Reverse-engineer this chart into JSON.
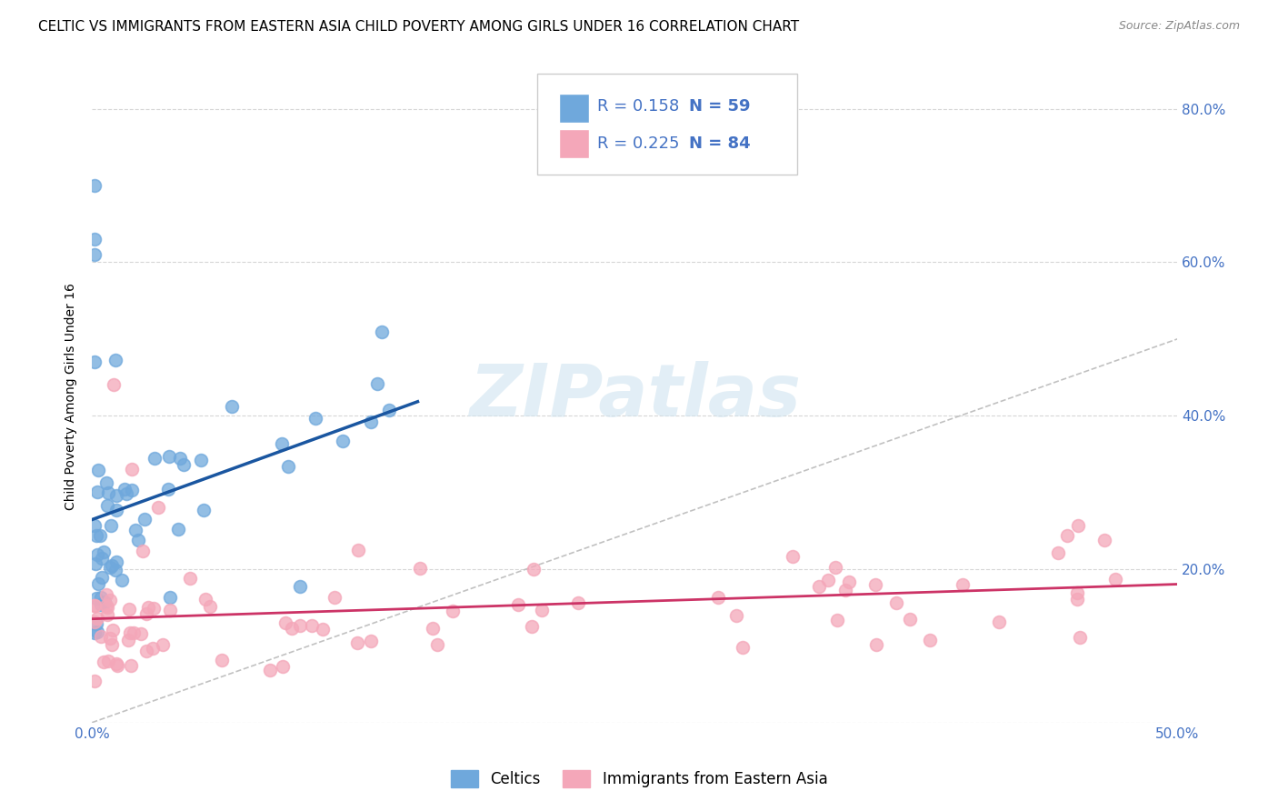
{
  "title": "CELTIC VS IMMIGRANTS FROM EASTERN ASIA CHILD POVERTY AMONG GIRLS UNDER 16 CORRELATION CHART",
  "source": "Source: ZipAtlas.com",
  "axis_color": "#4472c4",
  "ylabel": "Child Poverty Among Girls Under 16",
  "xlim": [
    0.0,
    0.5
  ],
  "ylim": [
    0.0,
    0.85
  ],
  "celtics_color": "#6fa8dc",
  "celtics_edge_color": "#6fa8dc",
  "immigrants_color": "#f4a7b9",
  "immigrants_edge_color": "#f4a7b9",
  "celtics_line_color": "#1a56a0",
  "immigrants_line_color": "#cc3366",
  "diagonal_color": "#bbbbbb",
  "legend_r1": "R = 0.158",
  "legend_n1": "N = 59",
  "legend_r2": "R = 0.225",
  "legend_n2": "N = 84",
  "legend_label1": "Celtics",
  "legend_label2": "Immigrants from Eastern Asia",
  "background_color": "#ffffff",
  "grid_color": "#cccccc",
  "title_fontsize": 11,
  "axis_label_fontsize": 10,
  "tick_fontsize": 11,
  "watermark_color": "#d0e4f0",
  "r_n_color": "#4472c4"
}
